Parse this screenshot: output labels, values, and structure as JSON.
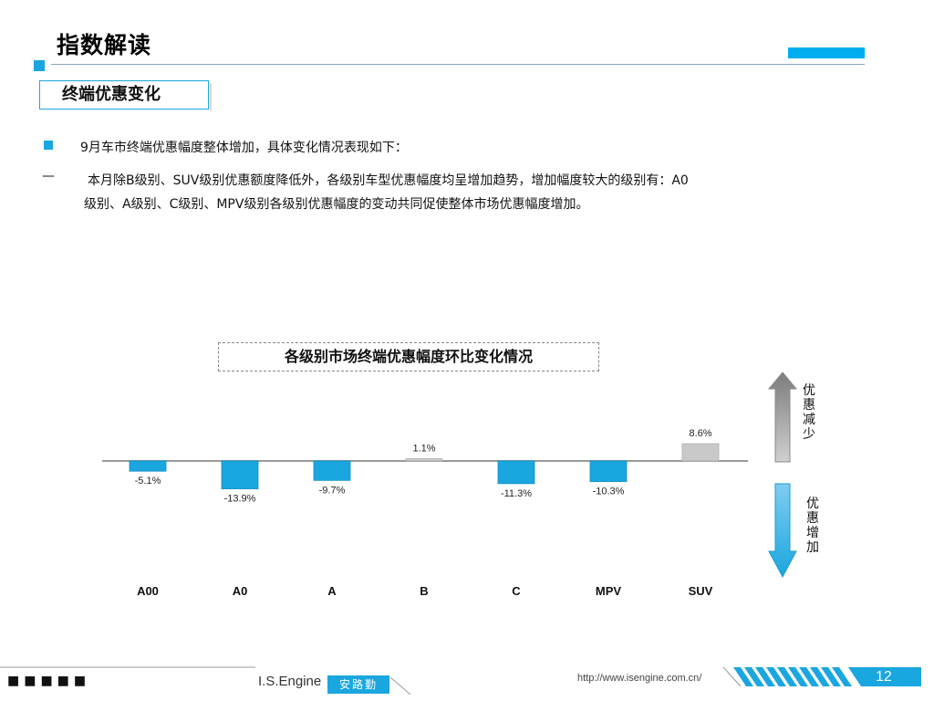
{
  "header": {
    "title": "指数解读",
    "section": "终端优惠变化"
  },
  "body": {
    "line1": "9月车市终端优惠幅度整体增加，具体变化情况表现如下：",
    "line2_a": "本月除B级别、SUV级别优惠额度降低外，各级别车型优惠幅度均呈增加趋势，增加幅度较大的级别有：A0",
    "line2_b": "级别、A级别、C级别、MPV级别各级别优惠幅度的变动共同促使整体市场优惠幅度增加。"
  },
  "chart_data": {
    "type": "bar",
    "title": "各级别市场终端优惠幅度环比变化情况",
    "categories": [
      "A00",
      "A0",
      "A",
      "B",
      "C",
      "MPV",
      "SUV"
    ],
    "values": [
      -5.1,
      -13.9,
      -9.7,
      1.1,
      -11.3,
      -10.3,
      8.6
    ],
    "value_labels": [
      "-5.1%",
      "-13.9%",
      "-9.7%",
      "1.1%",
      "-11.3%",
      "-10.3%",
      "8.6%"
    ],
    "unit": "%",
    "colors": {
      "negative": "#1aa6df",
      "positive": "#c9c9c9"
    },
    "arrow_up_label": "优\n惠\n减\n少",
    "arrow_down_label": "优\n惠\n增\n加"
  },
  "footer": {
    "dots": "■■■■■",
    "brand": "I.S.Engine",
    "brand_cn": "安路勤",
    "url": "http://www.isengine.com.cn/",
    "page": "12"
  },
  "colors": {
    "accent": "#1aa6df",
    "accent_bright": "#00aeef"
  }
}
